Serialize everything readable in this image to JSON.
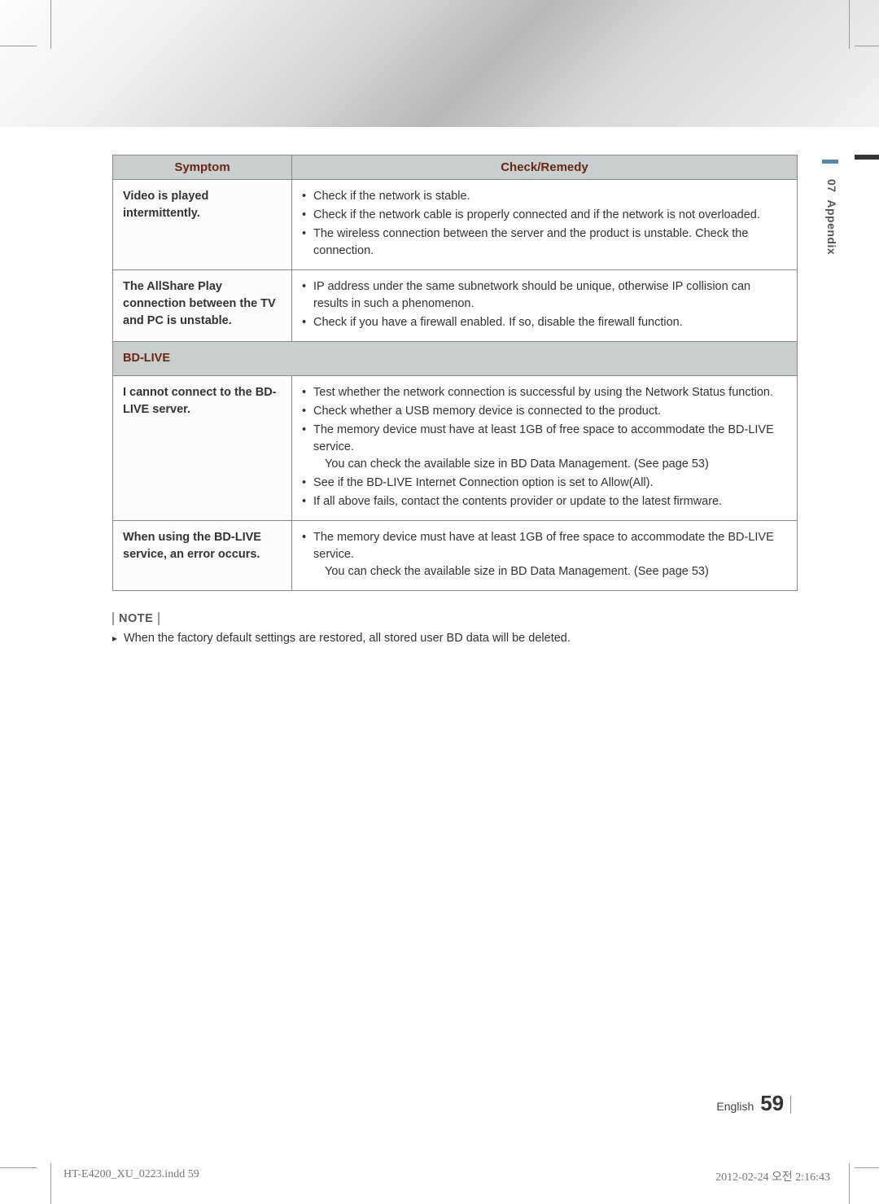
{
  "side": {
    "section_num": "07",
    "section_title": "Appendix"
  },
  "table": {
    "headers": {
      "symptom": "Symptom",
      "remedy": "Check/Remedy"
    },
    "rows": [
      {
        "symptom": "Video is played intermittently.",
        "remedies": [
          "Check if the network is stable.",
          "Check if the network cable is properly connected and if the network is not overloaded.",
          "The wireless connection between the server and the product is unstable. Check the connection."
        ]
      },
      {
        "symptom": "The AllShare Play connection between the TV and PC is unstable.",
        "remedies": [
          "IP address under the same subnetwork should be unique, otherwise IP collision can results in such a phenomenon.",
          "Check if you have a firewall enabled. If so, disable the firewall function."
        ]
      }
    ],
    "section_label": "BD-LIVE",
    "rows2": [
      {
        "symptom": "I cannot connect to the BD-LIVE server.",
        "remedies": [
          "Test whether the network connection is successful by using the Network Status function.",
          "Check whether a USB memory device is connected to the product.",
          "The memory device must have at least 1GB of free space to accommodate the BD-LIVE service.",
          "__SUB__You can check the available size in BD Data Management. (See page 53)",
          "See if the BD-LIVE Internet Connection option is set to Allow(All).",
          "If all above fails, contact the contents provider or update to the latest firmware."
        ]
      },
      {
        "symptom": "When using the BD-LIVE service, an error occurs.",
        "remedies": [
          "The memory device must have at least 1GB of free space to accommodate the BD-LIVE service.",
          "__SUB__You can check the available size in BD Data Management. (See page 53)"
        ]
      }
    ]
  },
  "note": {
    "label": "NOTE",
    "text": "When the factory default settings are restored, all stored user BD data will be deleted."
  },
  "footer": {
    "lang": "English",
    "page": "59",
    "print_left": "HT-E4200_XU_0223.indd   59",
    "print_right": "2012-02-24   오전 2:16:43"
  },
  "colors": {
    "header_bg": "#c9cfce",
    "header_text": "#6b250f",
    "border": "#888888",
    "side_accent": "#5a87a6"
  }
}
